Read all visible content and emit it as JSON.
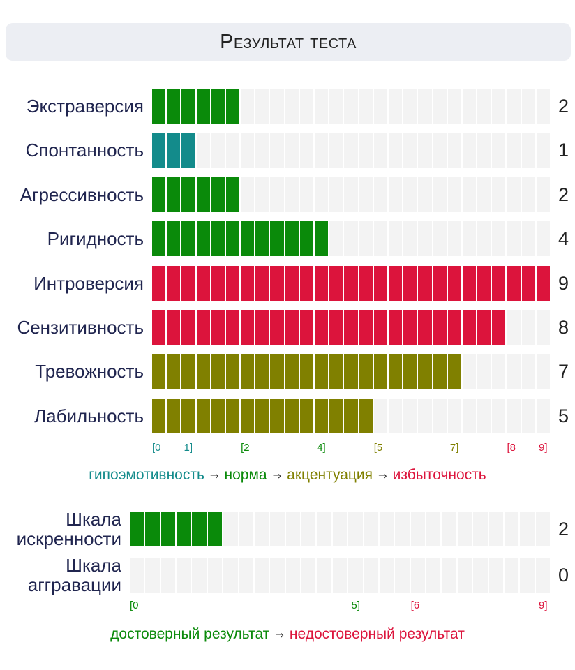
{
  "title": "Результат теста",
  "colors": {
    "hypo": "#138b8b",
    "norm": "#0a8a0a",
    "accent": "#808000",
    "excess": "#dc143c",
    "empty": "#f3f3f3"
  },
  "chart_data": [
    {
      "type": "bar",
      "orientation": "horizontal",
      "max": 9,
      "categories": [
        "Экстраверсия",
        "Спонтанность",
        "Агрессивность",
        "Ригидность",
        "Интроверсия",
        "Сензитивность",
        "Тревожность",
        "Лабильность"
      ],
      "values": [
        2,
        1,
        2,
        4,
        9,
        8,
        7,
        5
      ],
      "value_labels": [
        "2",
        "1",
        "2",
        "4",
        "9",
        "8",
        "7",
        "5"
      ],
      "zones": [
        {
          "name": "гипоэмотивность",
          "range": [
            0,
            1
          ],
          "color": "#138b8b"
        },
        {
          "name": "норма",
          "range": [
            2,
            4
          ],
          "color": "#0a8a0a"
        },
        {
          "name": "акцентуация",
          "range": [
            5,
            7
          ],
          "color": "#808000"
        },
        {
          "name": "избыточность",
          "range": [
            8,
            9
          ],
          "color": "#dc143c"
        }
      ],
      "ticks": [
        {
          "label": "[0",
          "value": 0,
          "color": "#138b8b"
        },
        {
          "label": "1]",
          "value": 1,
          "color": "#138b8b"
        },
        {
          "label": "[2",
          "value": 2,
          "color": "#0a8a0a"
        },
        {
          "label": "4]",
          "value": 4,
          "color": "#0a8a0a"
        },
        {
          "label": "[5",
          "value": 5,
          "color": "#808000"
        },
        {
          "label": "7]",
          "value": 7,
          "color": "#808000"
        },
        {
          "label": "[8",
          "value": 8,
          "color": "#dc143c"
        },
        {
          "label": "9]",
          "value": 9,
          "color": "#dc143c"
        }
      ],
      "legend": [
        "гипоэмотивность",
        "норма",
        "акцентуация",
        "избыточность"
      ]
    },
    {
      "type": "bar",
      "orientation": "horizontal",
      "max": 9,
      "categories": [
        "Шкала\nискренности",
        "Шкала\nаггравации"
      ],
      "values": [
        2,
        0
      ],
      "value_labels": [
        "2",
        "0"
      ],
      "zones": [
        {
          "name": "достоверный результат",
          "range": [
            0,
            5
          ],
          "color": "#0a8a0a"
        },
        {
          "name": "недостоверный результат",
          "range": [
            6,
            9
          ],
          "color": "#dc143c"
        }
      ],
      "ticks": [
        {
          "label": "[0",
          "value": 0,
          "color": "#0a8a0a"
        },
        {
          "label": "5]",
          "value": 5,
          "color": "#0a8a0a"
        },
        {
          "label": "[6",
          "value": 6,
          "color": "#dc143c"
        },
        {
          "label": "9]",
          "value": 9,
          "color": "#dc143c"
        }
      ],
      "legend": [
        "достоверный результат",
        "недостоверный результат"
      ]
    }
  ]
}
